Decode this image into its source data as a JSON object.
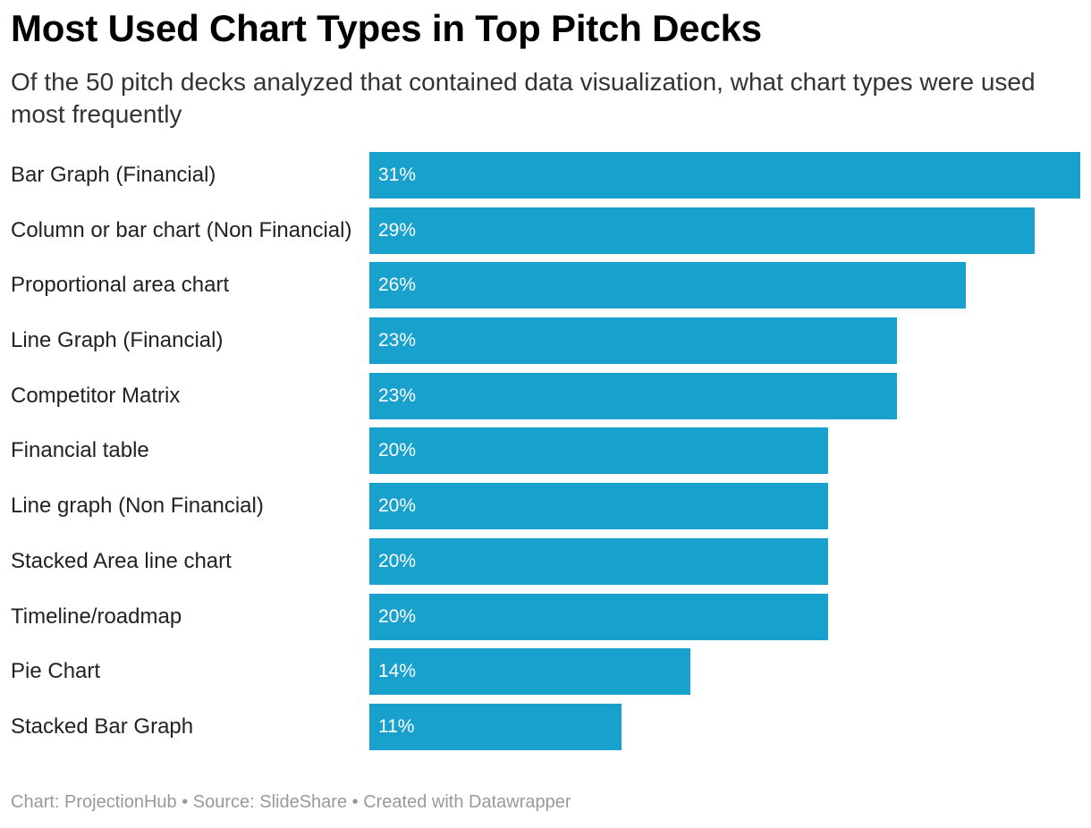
{
  "chart_data": {
    "type": "bar",
    "orientation": "horizontal",
    "title": "Most Used Chart Types in Top Pitch Decks",
    "subtitle": "Of the 50 pitch decks analyzed that contained data visualization, what chart types were used most frequently",
    "categories": [
      "Bar Graph (Financial)",
      "Column or bar chart (Non Financial)",
      "Proportional area chart",
      "Line Graph (Financial)",
      "Competitor Matrix",
      "Financial table",
      "Line graph (Non Financial)",
      "Stacked Area line chart",
      "Timeline/roadmap",
      "Pie Chart",
      "Stacked Bar Graph"
    ],
    "values": [
      31,
      29,
      26,
      23,
      23,
      20,
      20,
      20,
      20,
      14,
      11
    ],
    "value_labels": [
      "31%",
      "29%",
      "26%",
      "23%",
      "23%",
      "20%",
      "20%",
      "20%",
      "20%",
      "14%",
      "11%"
    ],
    "unit": "%",
    "xlim": [
      0,
      31
    ],
    "bar_color": "#18A1CD",
    "value_label_color": "#FFFFFF",
    "value_labels_inside": true,
    "category_label_position": "left",
    "grid": false,
    "legend": false
  },
  "footer": {
    "text": "Chart: ProjectionHub • Source: SlideShare • Created with Datawrapper"
  }
}
